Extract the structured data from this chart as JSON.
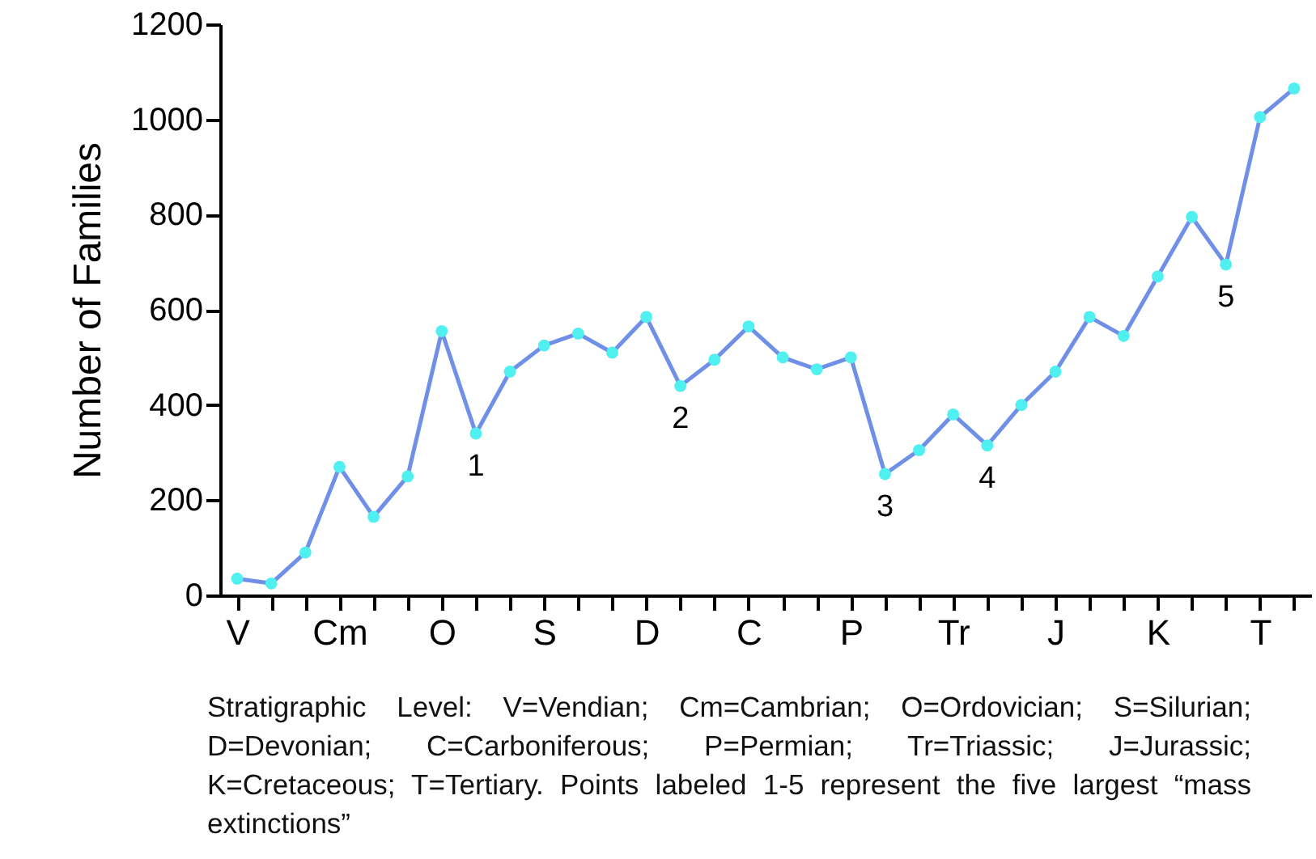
{
  "chart_data": {
    "type": "line",
    "ylabel": "Number of Families",
    "categories": [
      "V",
      null,
      null,
      "Cm",
      null,
      null,
      "O",
      null,
      null,
      "S",
      null,
      null,
      "D",
      null,
      null,
      "C",
      null,
      null,
      "P",
      null,
      null,
      "Tr",
      null,
      null,
      "J",
      null,
      null,
      "K",
      null,
      null,
      "T",
      null
    ],
    "series": [
      {
        "color": "#7090e8",
        "colors": [
          "#50f0f0",
          "#50f0f0",
          "#50f0f0",
          "#50f0f0",
          "#50f0f0",
          "#50f0f0",
          "#50f0f0",
          "#50f0f0",
          "#50f0f0",
          "#50f0f0",
          "#50f0f0",
          "#50f0f0",
          "#50f0f0",
          "#50f0f0",
          "#50f0f0",
          "#50f0f0",
          "#50f0f0",
          "#50f0f0",
          "#50f0f0",
          "#50f0f0",
          "#50f0f0",
          "#50f0f0",
          "#50f0f0",
          "#50f0f0",
          "#50f0f0",
          "#50f0f0",
          "#50f0f0",
          "#50f0f0",
          "#50f0f0",
          "#50f0f0",
          "#50f0f0",
          "#50f0f0"
        ],
        "values": [
          35,
          25,
          90,
          270,
          165,
          250,
          555,
          340,
          470,
          525,
          550,
          510,
          585,
          440,
          495,
          565,
          500,
          475,
          500,
          255,
          305,
          380,
          315,
          400,
          470,
          585,
          545,
          670,
          795,
          695,
          1005,
          1065
        ]
      }
    ],
    "ylim": [
      0,
      1200
    ],
    "yticks": [
      0,
      200,
      400,
      600,
      800,
      1000,
      1200
    ],
    "grid": false,
    "marker": "circle",
    "line_style": "solid",
    "annotations": [
      {
        "text": "1",
        "y": 340
      },
      {
        "text": "2",
        "y": 440
      },
      {
        "text": "3",
        "y": 255
      },
      {
        "text": "4",
        "y": 315
      },
      {
        "text": "5",
        "y": 695
      },
      "Stratigraphic Level: V=Vendian; Cm=Cambrian; O=Ordovician; S=Silurian; D=Devonian; C=Carboniferous; P=Permian; Tr=Triassic; J=Jurassic; K=Cretaceous; T=Tertiary. Points labeled 1-5 represent the five largest “mass extinctions”"
    ]
  }
}
